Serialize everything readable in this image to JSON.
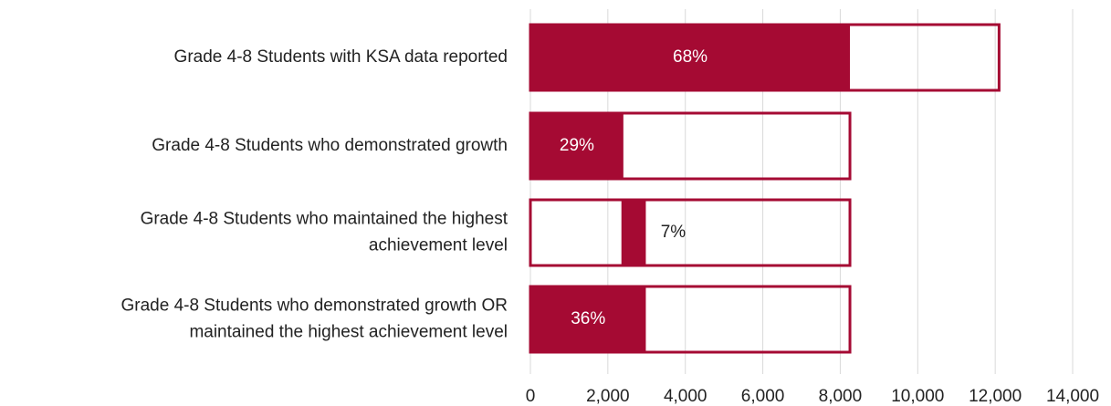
{
  "chart_data": {
    "type": "bar",
    "orientation": "horizontal",
    "categories": [
      [
        "Grade 4-8 Students with KSA data reported"
      ],
      [
        "Grade 4-8 Students who demonstrated growth"
      ],
      [
        "Grade 4-8 Students who maintained the highest",
        "achievement level"
      ],
      [
        "Grade 4-8 Students who demonstrated growth OR",
        "maintained the highest achievement level"
      ]
    ],
    "totals": {
      "color": "#a50a33",
      "values": [
        12100,
        8250,
        8250,
        8250
      ]
    },
    "series": [
      {
        "color": "none",
        "values": [
          0,
          0,
          2350,
          0
        ]
      },
      {
        "color": "#a50a33",
        "values": [
          8250,
          2400,
          630,
          2980
        ],
        "data_labels": [
          "68%",
          "29%",
          "7%",
          "36%"
        ]
      }
    ],
    "xlim": [
      0,
      14000
    ],
    "xticks": [
      0,
      {
        "value": 2000,
        "label": "2,000"
      },
      {
        "value": 4000,
        "label": "4,000"
      },
      {
        "value": 6000,
        "label": "6,000"
      },
      {
        "value": 8000,
        "label": "8,000"
      },
      {
        "value": 10000,
        "label": "10,000"
      },
      {
        "value": 12000,
        "label": "12,000"
      },
      {
        "value": 14000,
        "label": "14,000"
      }
    ],
    "grid": true
  }
}
